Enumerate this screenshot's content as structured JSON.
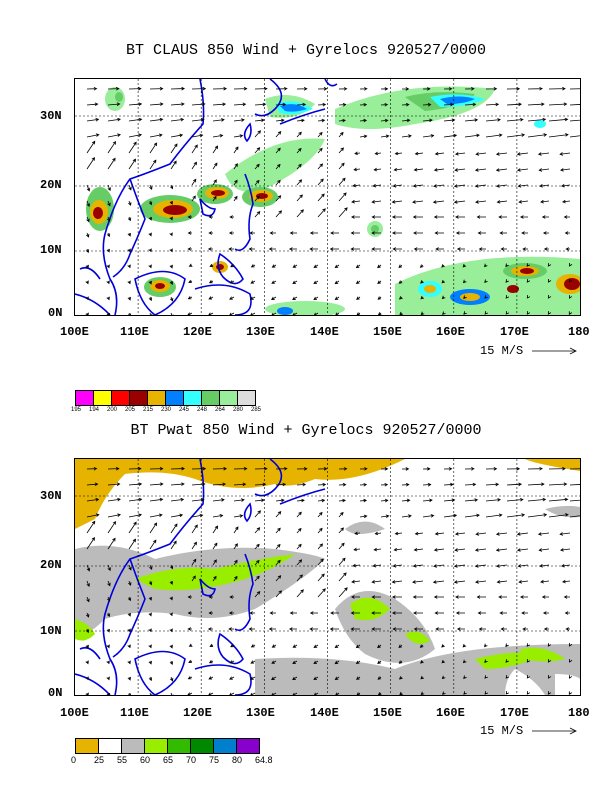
{
  "panels": [
    {
      "id": "top",
      "title": "BT CLAUS 850 Wind + Gyrelocs 920527/0000",
      "lon_ticks": [
        "100E",
        "110E",
        "120E",
        "130E",
        "140E",
        "150E",
        "160E",
        "170E",
        "180"
      ],
      "lat_ticks": [
        "30N",
        "20N",
        "10N",
        "0N"
      ],
      "ref_vector": "15 M/S",
      "colorbar_labels": [
        "195",
        "194",
        "200",
        "205",
        "215",
        "230",
        "245",
        "248",
        "264",
        "280",
        "285"
      ],
      "colorbar_colors": [
        "#ff00ff",
        "#ffff00",
        "#ff0000",
        "#990000",
        "#e6b400",
        "#0080ff",
        "#33ffff",
        "#66cc66",
        "#99ee99",
        "#dddddd"
      ]
    },
    {
      "id": "bottom",
      "title": "BT Pwat 850 Wind + Gyrelocs 920527/0000",
      "lon_ticks": [
        "100E",
        "110E",
        "120E",
        "130E",
        "140E",
        "150E",
        "160E",
        "170E",
        "180"
      ],
      "lat_ticks": [
        "30N",
        "20N",
        "10N",
        "0N"
      ],
      "ref_vector": "15 M/S",
      "colorbar_labels": [
        "0",
        "25",
        "55",
        "60",
        "65",
        "70",
        "75",
        "80",
        "64.8"
      ],
      "colorbar_colors": [
        "#e6b400",
        "#ffffff",
        "#bbbbbb",
        "#99ee00",
        "#33bb00",
        "#008800",
        "#0080cc",
        "#8800cc"
      ]
    }
  ]
}
